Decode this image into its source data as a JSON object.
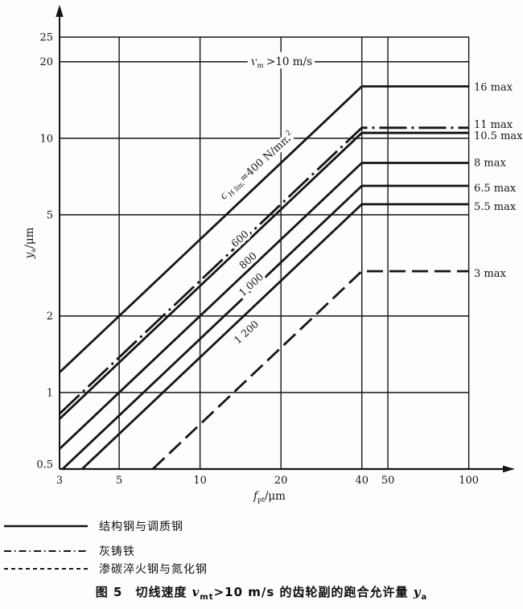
{
  "colors": {
    "ink": "#151515",
    "paper": "#fdfdfc"
  },
  "chart_data": {
    "type": "line",
    "x_scale": "log",
    "y_scale": "log",
    "xlim": [
      3,
      100
    ],
    "ylim": [
      0.5,
      25
    ],
    "xlabel": "fpt/μm",
    "ylabel": "ya/μm",
    "x_label_parts": {
      "sym": "f",
      "sub": "pt",
      "unit": "/μm"
    },
    "y_label_parts": {
      "sym": "y",
      "sub": "a",
      "unit": "/μm"
    },
    "x_ticks": [
      "3",
      "5",
      "10",
      "20",
      "40",
      "50",
      "100"
    ],
    "x_tick_values": [
      3,
      5,
      10,
      20,
      40,
      50,
      100
    ],
    "y_ticks": [
      "25",
      "20",
      "10",
      "5",
      "2",
      "1",
      "0.5"
    ],
    "y_tick_values": [
      25,
      20,
      10,
      5,
      2,
      1,
      0.5
    ],
    "x_gridlines": [
      5,
      10,
      20,
      40,
      50,
      100
    ],
    "y_gridlines": [
      25,
      20,
      10,
      5,
      2,
      1
    ],
    "grid": "on",
    "annotation_speed": {
      "v": "v",
      "sub": "mt",
      "rest": ">10 m/s"
    },
    "annotation_sigma": {
      "sigma": "σ",
      "sub": "H lim",
      "mid": "=400 N/mm",
      "sup": "2"
    },
    "series": [
      {
        "name": "sigma-400-structural-steel",
        "style": "solid",
        "k": 0.4,
        "cutoff": 16,
        "cutoff_label": "16 max",
        "line_label": "σH lim=400 N/mm²",
        "points": [
          [
            3,
            1.2
          ],
          [
            40,
            16
          ],
          [
            100,
            16
          ]
        ]
      },
      {
        "name": "gray-cast-iron",
        "style": "dashdot",
        "k": 0.275,
        "cutoff": 11,
        "cutoff_label": "11 max",
        "line_label": "",
        "points": [
          [
            3,
            0.825
          ],
          [
            40,
            11
          ],
          [
            100,
            11
          ]
        ]
      },
      {
        "name": "sigma-600",
        "style": "solid",
        "k": 0.2625,
        "cutoff": 10.5,
        "cutoff_label": "10.5 max",
        "line_label": "600",
        "points": [
          [
            3,
            0.7875
          ],
          [
            40,
            10.5
          ],
          [
            100,
            10.5
          ]
        ]
      },
      {
        "name": "sigma-800",
        "style": "solid",
        "k": 0.2,
        "cutoff": 8,
        "cutoff_label": "8 max",
        "line_label": "800",
        "points": [
          [
            3,
            0.6
          ],
          [
            40,
            8
          ],
          [
            100,
            8
          ]
        ]
      },
      {
        "name": "sigma-1000",
        "style": "solid",
        "k": 0.1625,
        "cutoff": 6.5,
        "cutoff_label": "6.5 max",
        "line_label": "1 000",
        "points": [
          [
            3.08,
            0.5
          ],
          [
            40,
            6.5
          ],
          [
            100,
            6.5
          ]
        ]
      },
      {
        "name": "sigma-1200",
        "style": "solid",
        "k": 0.1375,
        "cutoff": 5.5,
        "cutoff_label": "5.5 max",
        "line_label": "1 200",
        "points": [
          [
            3.64,
            0.5
          ],
          [
            40,
            5.5
          ],
          [
            100,
            5.5
          ]
        ]
      },
      {
        "name": "carburized-nitrided-steel",
        "style": "dashed",
        "k": 0.075,
        "cutoff": 3,
        "cutoff_label": "3 max",
        "line_label": "",
        "points": [
          [
            6.67,
            0.5
          ],
          [
            40,
            3
          ],
          [
            100,
            3
          ]
        ]
      }
    ]
  },
  "legend": {
    "items": [
      {
        "style": "solid",
        "label": "结构钢与调质钢"
      },
      {
        "style": "dashdot",
        "label": "灰铸铁"
      },
      {
        "style": "dashed",
        "label": "渗碳淬火钢与氮化钢"
      }
    ]
  },
  "caption": {
    "fig_no": "图 5",
    "text_before_v": "切线速度 ",
    "v": "v",
    "v_sub": "mt",
    "text_after_v": ">10 m/s 的齿轮副的跑合允许量 ",
    "y": "y",
    "y_sub": "a"
  }
}
